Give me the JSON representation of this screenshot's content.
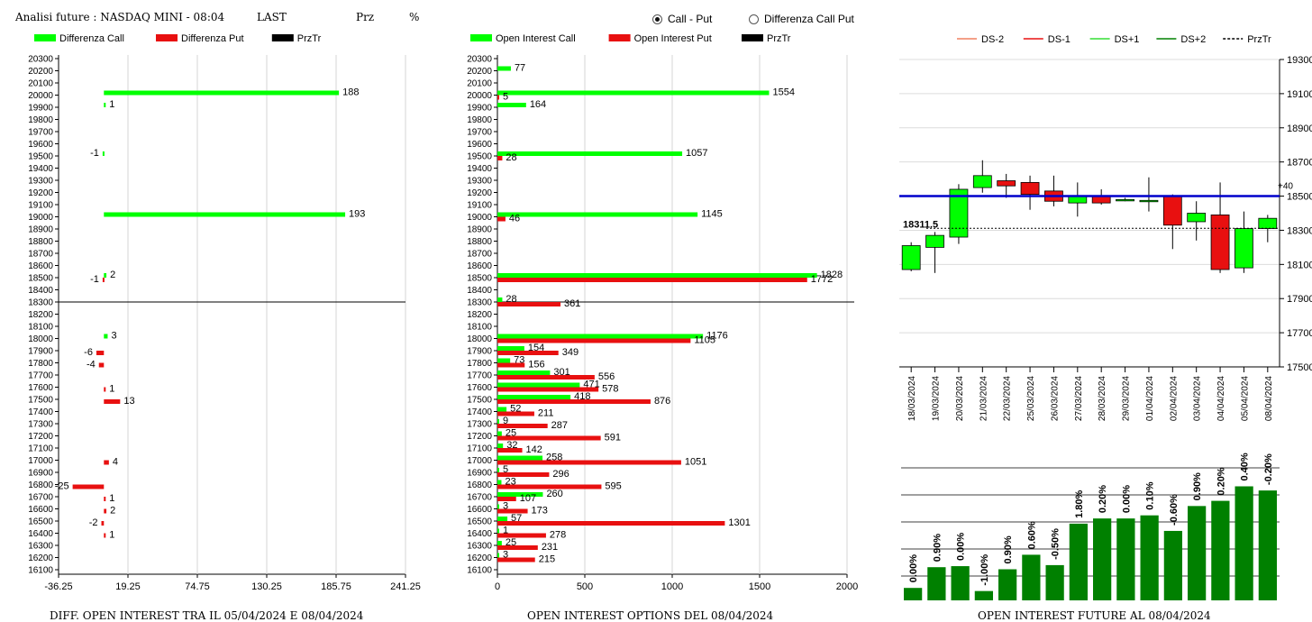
{
  "header": {
    "title": "Analisi future : NASDAQ MINI - 08:04",
    "last_label": "LAST",
    "prz_label": "Prz",
    "pct_label": "%"
  },
  "options": {
    "call_put_label": "Call - Put",
    "diff_label": "Differenza Call Put",
    "selected": "call_put"
  },
  "colors": {
    "green": "#00ff00",
    "red": "#e81010",
    "blue": "#0000cc",
    "dark_green": "#008000"
  },
  "footers": {
    "diff": "DIFF. OPEN INTEREST TRA IL 05/04/2024 E 08/04/2024",
    "oi": "OPEN INTEREST OPTIONS DEL 08/04/2024",
    "future": "OPEN INTEREST FUTURE AL 08/04/2024"
  },
  "chart_data": [
    {
      "type": "bar",
      "orientation": "horizontal",
      "legend": [
        "Differenza Call",
        "Differenza Put",
        "PrzTr"
      ],
      "strikes": [
        20300,
        20200,
        20100,
        20000,
        19900,
        19800,
        19700,
        19600,
        19500,
        19400,
        19300,
        19200,
        19100,
        19000,
        18900,
        18800,
        18700,
        18600,
        18500,
        18400,
        18300,
        18200,
        18100,
        18000,
        17900,
        17800,
        17700,
        17600,
        17500,
        17400,
        17300,
        17200,
        17100,
        17000,
        16900,
        16800,
        16700,
        16600,
        16500,
        16400,
        16300,
        16200,
        16100
      ],
      "xticks": [
        "-36.25",
        "19.25",
        "74.75",
        "130.25",
        "185.75",
        "241.25"
      ],
      "xlim": [
        -36.25,
        241.25
      ],
      "reference_strike": 18300,
      "call_values": {
        "20000": 188,
        "19900": 1,
        "19500": -1,
        "19000": 193,
        "18500": 2,
        "18000": 3
      },
      "put_values": {
        "18500": -1,
        "17900": -6,
        "17800": -4,
        "17600": 1,
        "17500": 13,
        "17000": 4,
        "16800": -25,
        "16700": 1,
        "16600": 2,
        "16500": -2,
        "16400": 1
      }
    },
    {
      "type": "bar",
      "orientation": "horizontal",
      "legend": [
        "Open Interest Call",
        "Open Interest Put",
        "PrzTr"
      ],
      "strikes": [
        20300,
        20200,
        20100,
        20000,
        19900,
        19800,
        19700,
        19600,
        19500,
        19400,
        19300,
        19200,
        19100,
        19000,
        18900,
        18800,
        18700,
        18600,
        18500,
        18400,
        18300,
        18200,
        18100,
        18000,
        17900,
        17800,
        17700,
        17600,
        17500,
        17400,
        17300,
        17200,
        17100,
        17000,
        16900,
        16800,
        16700,
        16600,
        16500,
        16400,
        16300,
        16200,
        16100
      ],
      "xticks": [
        "0",
        "500",
        "1000",
        "1500",
        "2000"
      ],
      "xlim": [
        0,
        2000
      ],
      "reference_strike": 18300,
      "call_values": {
        "20200": 77,
        "20000": 1554,
        "19900": 164,
        "19500": 1057,
        "19000": 1145,
        "18500": 1828,
        "18300": 28,
        "18000": 1176,
        "17900": 154,
        "17800": 73,
        "17700": 301,
        "17600": 471,
        "17500": 418,
        "17400": 52,
        "17300": 9,
        "17200": 25,
        "17100": 32,
        "17000": 258,
        "16900": 5,
        "16800": 23,
        "16700": 260,
        "16600": 3,
        "16500": 57,
        "16400": 1,
        "16300": 25,
        "16200": 3
      },
      "put_values": {
        "20000": 5,
        "19500": 28,
        "19000": 46,
        "18500": 1772,
        "18300": 361,
        "18000": 1105,
        "17900": 349,
        "17800": 156,
        "17700": 556,
        "17600": 578,
        "17500": 876,
        "17400": 211,
        "17300": 287,
        "17200": 591,
        "17100": 142,
        "17000": 1051,
        "16900": 296,
        "16800": 595,
        "16700": 107,
        "16600": 173,
        "16500": 1301,
        "16400": 278,
        "16300": 231,
        "16200": 215
      }
    },
    {
      "type": "candlestick",
      "legend": [
        "DS-2",
        "DS-1",
        "DS+1",
        "DS+2",
        "PrzTr"
      ],
      "dates": [
        "18/03/2024",
        "19/03/2024",
        "20/03/2024",
        "21/03/2024",
        "22/03/2024",
        "25/03/2024",
        "26/03/2024",
        "27/03/2024",
        "28/03/2024",
        "29/03/2024",
        "01/04/2024",
        "02/04/2024",
        "03/04/2024",
        "04/04/2024",
        "05/04/2024",
        "08/04/2024"
      ],
      "open": [
        18070,
        18200,
        18260,
        18550,
        18590,
        18580,
        18530,
        18460,
        18500,
        18475,
        18475,
        18500,
        18350,
        18390,
        18080,
        18310
      ],
      "close": [
        18210,
        18270,
        18540,
        18620,
        18560,
        18510,
        18470,
        18500,
        18460,
        18480,
        18475,
        18330,
        18400,
        18070,
        18310,
        18370
      ],
      "high": [
        18230,
        18290,
        18570,
        18710,
        18630,
        18620,
        18620,
        18580,
        18540,
        18490,
        18610,
        18510,
        18470,
        18580,
        18410,
        18390
      ],
      "low": [
        18060,
        18050,
        18220,
        18520,
        18490,
        18420,
        18440,
        18380,
        18450,
        18470,
        18410,
        18190,
        18240,
        18050,
        18050,
        18230
      ],
      "yticks": [
        "19300",
        "19100",
        "18900",
        "18700",
        "18500",
        "18300",
        "18100",
        "17900",
        "17700",
        "17500"
      ],
      "ylim": [
        17500,
        19300
      ],
      "blue_line": 18500,
      "blue_line_label": "+40",
      "current_price": 18311.5,
      "current_price_label": "18311.5"
    },
    {
      "type": "bar",
      "values": [
        0.12,
        0.32,
        0.33,
        0.09,
        0.3,
        0.44,
        0.34,
        0.74,
        0.79,
        0.79,
        0.82,
        0.67,
        0.91,
        0.96,
        1.1,
        1.06
      ],
      "labels": [
        "0.00%",
        "0.90%",
        "0.00%",
        "-1.00%",
        "0.90%",
        "0.60%",
        "-0.50%",
        "1.80%",
        "0.20%",
        "0.00%",
        "0.10%",
        "-0.60%",
        "0.90%",
        "0.20%",
        "0.40%",
        "-0.20%"
      ]
    }
  ]
}
